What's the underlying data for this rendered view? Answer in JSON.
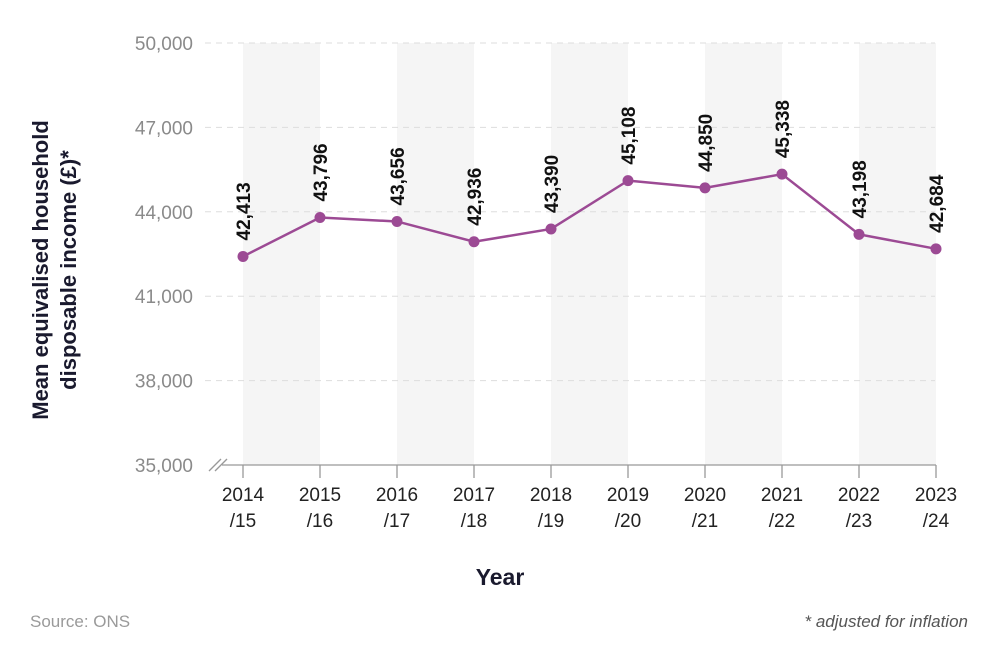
{
  "chart_data": {
    "type": "line",
    "title": "",
    "xlabel": "Year",
    "ylabel": "Mean equivalised household disposable income (£)*",
    "ylabel_lines": [
      "Mean equivalised household",
      "disposable income (£)*"
    ],
    "ylim": [
      35000,
      50000
    ],
    "yticks": [
      35000,
      38000,
      41000,
      44000,
      47000,
      50000
    ],
    "ytick_labels": [
      "35,000",
      "38,000",
      "41,000",
      "44,000",
      "47,000",
      "50,000"
    ],
    "categories": [
      [
        "2014",
        "/15"
      ],
      [
        "2015",
        "/16"
      ],
      [
        "2016",
        "/17"
      ],
      [
        "2017",
        "/18"
      ],
      [
        "2018",
        "/19"
      ],
      [
        "2019",
        "/20"
      ],
      [
        "2020",
        "/21"
      ],
      [
        "2021",
        "/22"
      ],
      [
        "2022",
        "/23"
      ],
      [
        "2023",
        "/24"
      ]
    ],
    "values": [
      42413,
      43796,
      43656,
      42936,
      43390,
      45108,
      44850,
      45338,
      43198,
      42684
    ],
    "data_labels": [
      "42,413",
      "43,796",
      "43,656",
      "42,936",
      "43,390",
      "45,108",
      "44,850",
      "45,338",
      "43,198",
      "42,684"
    ],
    "grid": "horizontal dashed",
    "axis_break": true,
    "colors": {
      "line": "#9c4a94",
      "band": "#f5f5f5",
      "grid": "#dddddd"
    }
  },
  "footer": {
    "source": "Source: ONS",
    "note": "* adjusted for inflation"
  }
}
